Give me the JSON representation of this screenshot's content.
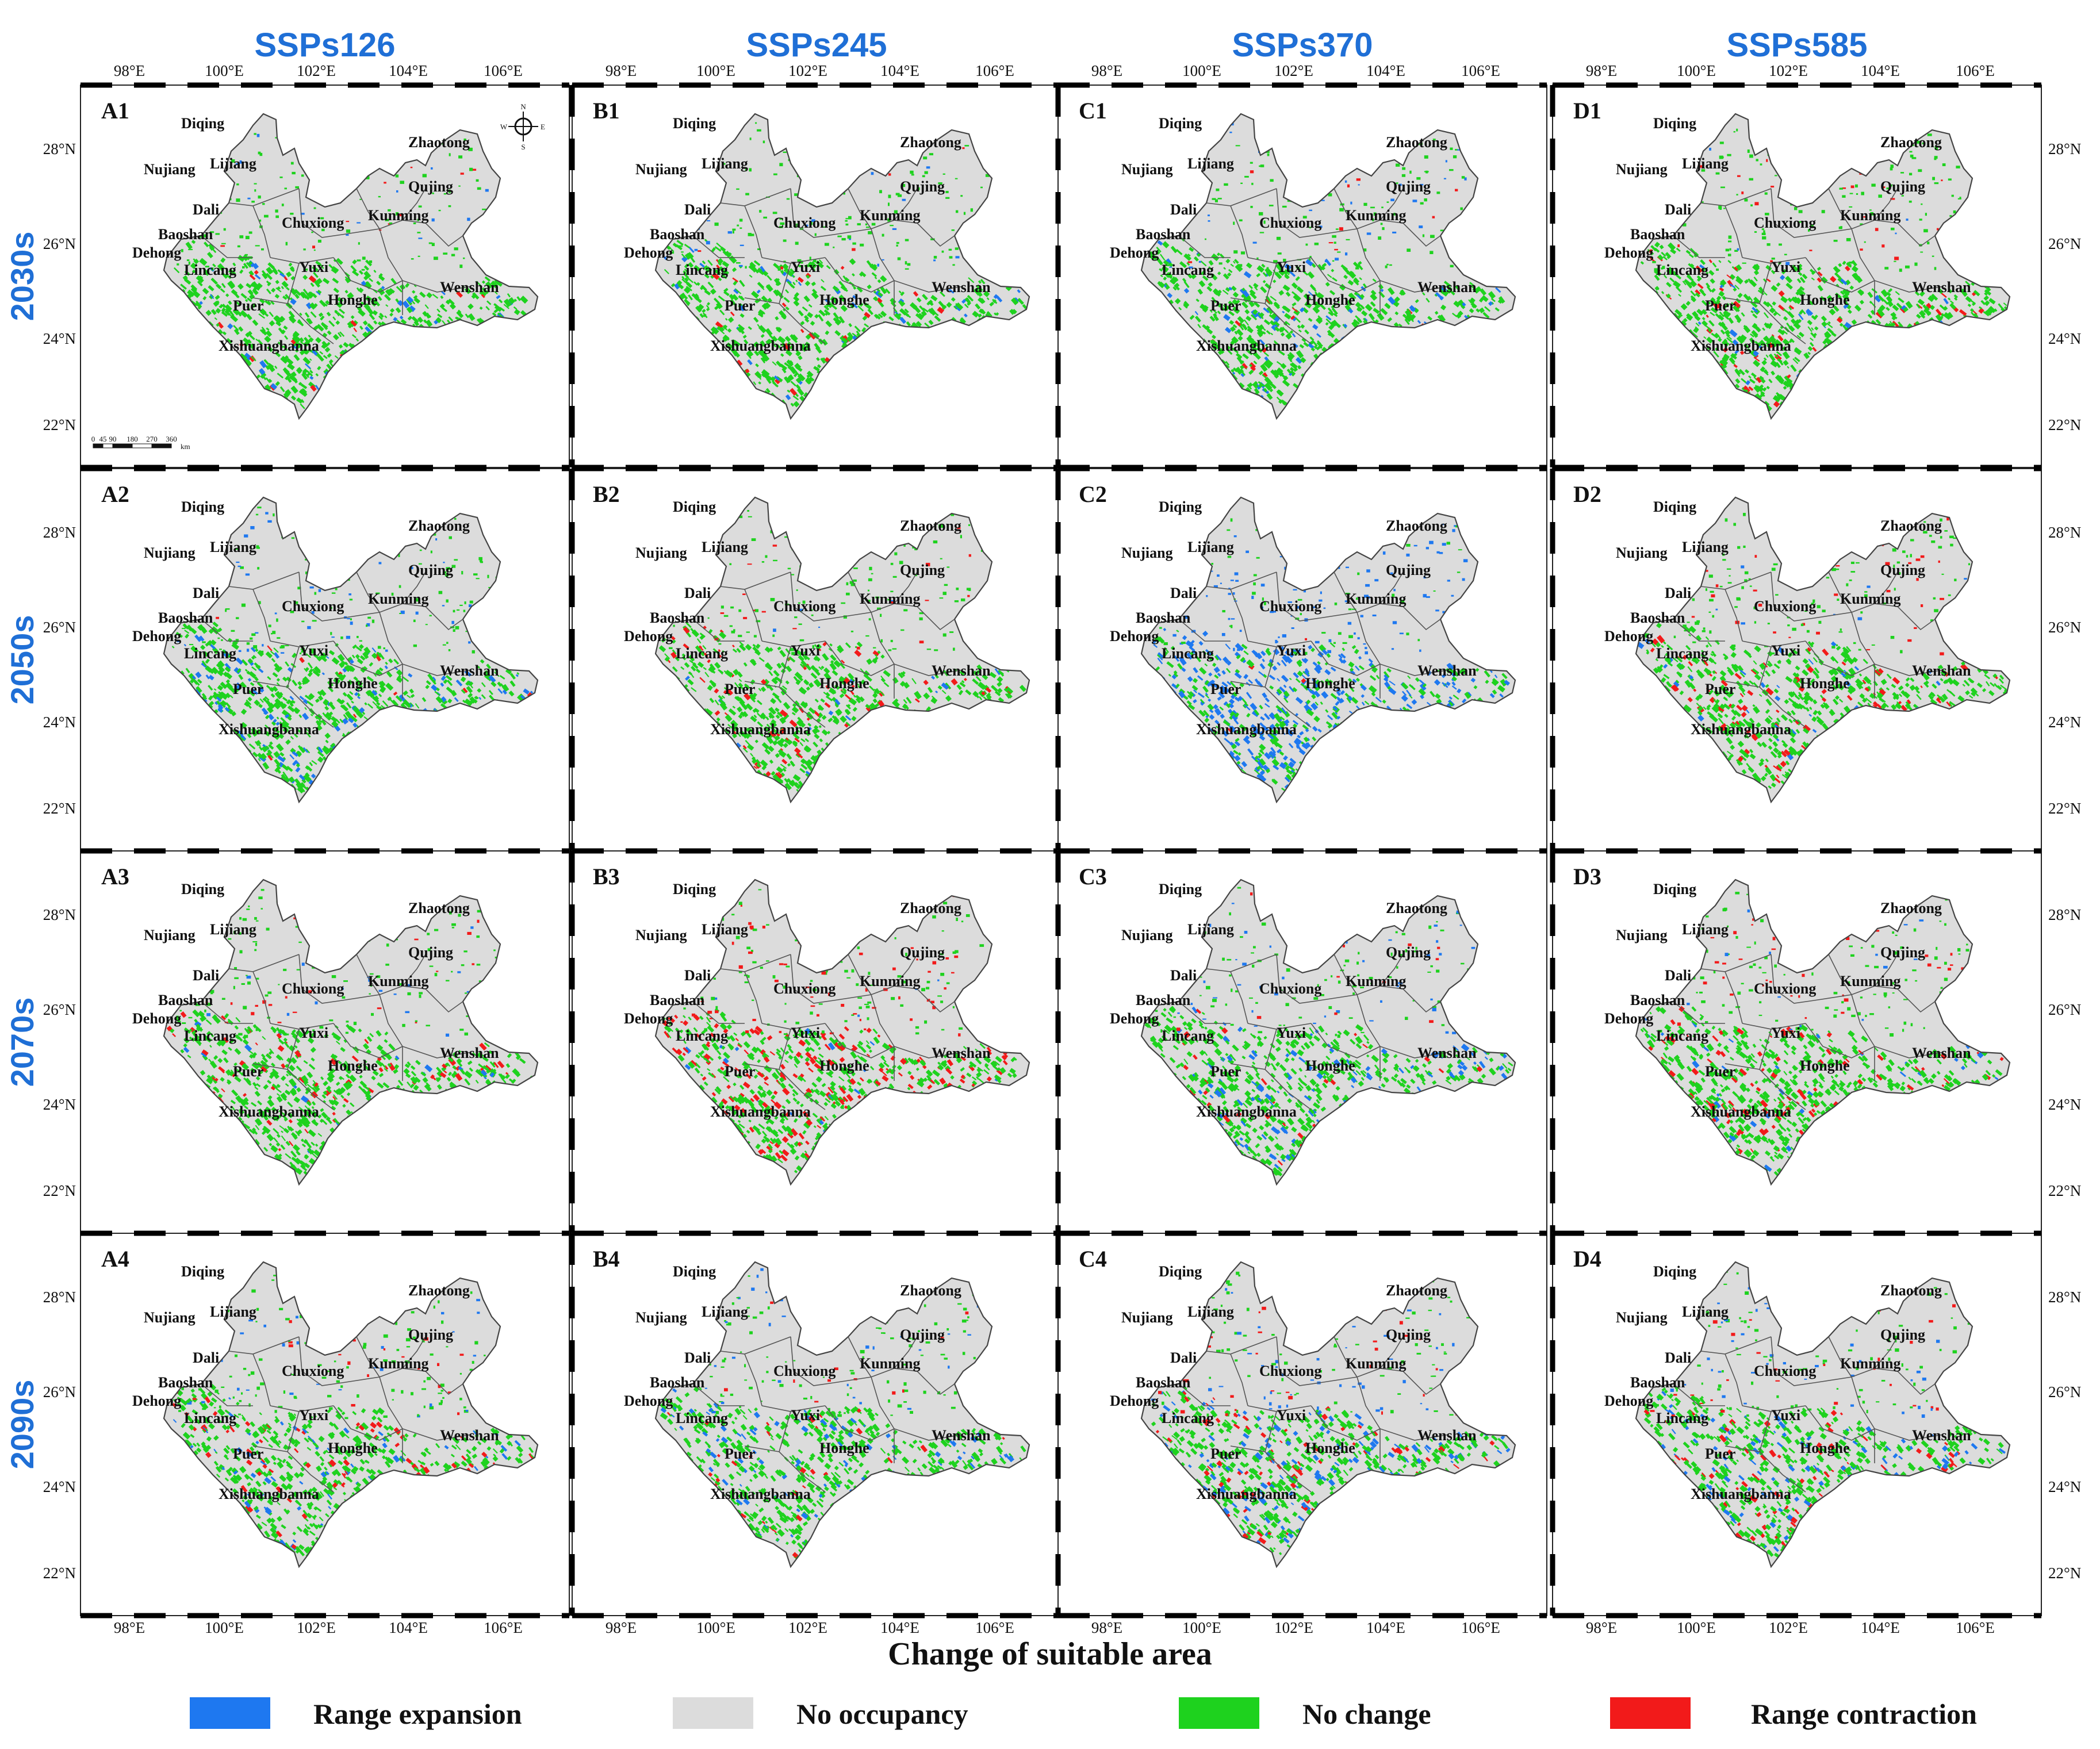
{
  "figure": {
    "x_axis_title": "Change of suitable area",
    "scenario_columns": [
      "SSPs126",
      "SSPs245",
      "SSPs370",
      "SSPs585"
    ],
    "period_rows": [
      "2030s",
      "2050s",
      "2070s",
      "2090s"
    ],
    "longitude_ticks": [
      "98°E",
      "100°E",
      "102°E",
      "104°E",
      "106°E"
    ],
    "latitude_ticks": [
      "28°N",
      "26°N",
      "24°N",
      "22°N"
    ],
    "scale_bar": {
      "ticks": [
        "0",
        "45",
        "90",
        "180",
        "270",
        "360"
      ],
      "unit": "km"
    },
    "compass": {
      "n": "N",
      "s": "S",
      "e": "E",
      "w": "W"
    }
  },
  "legend": [
    {
      "label": "Range expansion",
      "color": "#1e78f0"
    },
    {
      "label": "No occupancy",
      "color": "#dcdcdc"
    },
    {
      "label": "No change",
      "color": "#1ed21e"
    },
    {
      "label": "Range contraction",
      "color": "#f21a1a"
    }
  ],
  "cities": [
    "Diqing",
    "Zhaotong",
    "Nujiang",
    "Lijiang",
    "Qujing",
    "Dali",
    "Chuxiong",
    "Kunming",
    "Baoshan",
    "Dehong",
    "Lincang",
    "Yuxi",
    "Wenshan",
    "Puer",
    "Honghe",
    "Xishuangbanna"
  ],
  "panels": [
    {
      "id": "A1",
      "scenario": "SSPs126",
      "period": "2030s",
      "expansion": 0.1,
      "contraction": 0.1,
      "expansion_cover": "low",
      "contraction_cover": "low"
    },
    {
      "id": "B1",
      "scenario": "SSPs245",
      "period": "2030s",
      "expansion": 0.12,
      "contraction": 0.1,
      "expansion_cover": "low",
      "contraction_cover": "low"
    },
    {
      "id": "C1",
      "scenario": "SSPs370",
      "period": "2030s",
      "expansion": 0.22,
      "contraction": 0.08,
      "expansion_cover": "moderate",
      "contraction_cover": "low"
    },
    {
      "id": "D1",
      "scenario": "SSPs585",
      "period": "2030s",
      "expansion": 0.08,
      "contraction": 0.25,
      "expansion_cover": "low",
      "contraction_cover": "moderate"
    },
    {
      "id": "A2",
      "scenario": "SSPs126",
      "period": "2050s",
      "expansion": 0.32,
      "contraction": 0.05,
      "expansion_cover": "high",
      "contraction_cover": "low"
    },
    {
      "id": "B2",
      "scenario": "SSPs245",
      "period": "2050s",
      "expansion": 0.05,
      "contraction": 0.3,
      "expansion_cover": "low",
      "contraction_cover": "moderate"
    },
    {
      "id": "C2",
      "scenario": "SSPs370",
      "period": "2050s",
      "expansion": 0.95,
      "contraction": 0.02,
      "expansion_cover": "very high",
      "contraction_cover": "very low"
    },
    {
      "id": "D2",
      "scenario": "SSPs585",
      "period": "2050s",
      "expansion": 0.1,
      "contraction": 0.35,
      "expansion_cover": "low",
      "contraction_cover": "moderate"
    },
    {
      "id": "A3",
      "scenario": "SSPs126",
      "period": "2070s",
      "expansion": 0.1,
      "contraction": 0.3,
      "expansion_cover": "low",
      "contraction_cover": "moderate"
    },
    {
      "id": "B3",
      "scenario": "SSPs245",
      "period": "2070s",
      "expansion": 0.05,
      "contraction": 0.7,
      "expansion_cover": "low",
      "contraction_cover": "high"
    },
    {
      "id": "C3",
      "scenario": "SSPs370",
      "period": "2070s",
      "expansion": 0.35,
      "contraction": 0.15,
      "expansion_cover": "moderate",
      "contraction_cover": "low"
    },
    {
      "id": "D3",
      "scenario": "SSPs585",
      "period": "2070s",
      "expansion": 0.1,
      "contraction": 0.4,
      "expansion_cover": "low",
      "contraction_cover": "moderate"
    },
    {
      "id": "A4",
      "scenario": "SSPs126",
      "period": "2090s",
      "expansion": 0.2,
      "contraction": 0.3,
      "expansion_cover": "moderate",
      "contraction_cover": "moderate"
    },
    {
      "id": "B4",
      "scenario": "SSPs245",
      "period": "2090s",
      "expansion": 0.25,
      "contraction": 0.2,
      "expansion_cover": "moderate",
      "contraction_cover": "low"
    },
    {
      "id": "C4",
      "scenario": "SSPs370",
      "period": "2090s",
      "expansion": 0.35,
      "contraction": 0.35,
      "expansion_cover": "moderate",
      "contraction_cover": "moderate"
    },
    {
      "id": "D4",
      "scenario": "SSPs585",
      "period": "2090s",
      "expansion": 0.3,
      "contraction": 0.35,
      "expansion_cover": "moderate",
      "contraction_cover": "moderate"
    }
  ]
}
